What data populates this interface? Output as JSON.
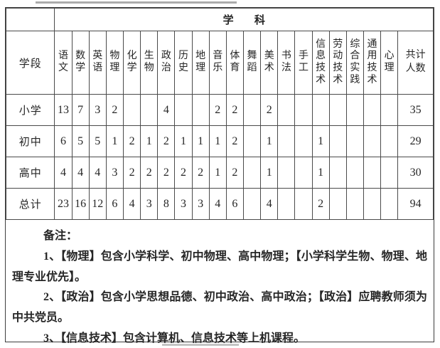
{
  "table": {
    "subject_header": "学 科",
    "stage_header": "学段",
    "columns": [
      "语文",
      "数学",
      "英语",
      "物理",
      "化学",
      "生物",
      "政治",
      "历史",
      "地理",
      "音乐",
      "体育",
      "舞蹈",
      "美术",
      "书法",
      "手工",
      "信息技术",
      "劳动技术",
      "综合实践",
      "通用技术",
      "心理",
      "共计人数"
    ],
    "rows": [
      {
        "label": "小学",
        "values": [
          "13",
          "7",
          "3",
          "2",
          "",
          "",
          "4",
          "",
          "",
          "2",
          "2",
          "",
          "2",
          "",
          "",
          "",
          "",
          "",
          "",
          "",
          "35"
        ]
      },
      {
        "label": "初中",
        "values": [
          "6",
          "5",
          "5",
          "1",
          "2",
          "1",
          "2",
          "1",
          "1",
          "1",
          "2",
          "",
          "1",
          "",
          "",
          "1",
          "",
          "",
          "",
          "",
          "29"
        ]
      },
      {
        "label": "高中",
        "values": [
          "4",
          "4",
          "4",
          "3",
          "2",
          "2",
          "2",
          "2",
          "2",
          "1",
          "2",
          "",
          "1",
          "",
          "",
          "1",
          "",
          "",
          "",
          "",
          "30"
        ]
      },
      {
        "label": "总计",
        "values": [
          "23",
          "16",
          "12",
          "6",
          "4",
          "3",
          "8",
          "3",
          "3",
          "4",
          "6",
          "",
          "4",
          "",
          "",
          "2",
          "",
          "",
          "",
          "",
          "94"
        ]
      }
    ]
  },
  "notes": {
    "title": "备注：",
    "items": [
      "1、【物理】包含小学科学、初中物理、高中物理；【小学科学生物、物理、地理专业优先】。",
      "2、【政治】包含小学思想品德、初中政治、高中政治；【政治】应聘教师须为中共党员。",
      "3、【信息技术】包含计算机、信息技术等上机课程。"
    ]
  },
  "colors": {
    "border": "#4a4a4a",
    "text": "#262626",
    "background": "#ffffff"
  }
}
